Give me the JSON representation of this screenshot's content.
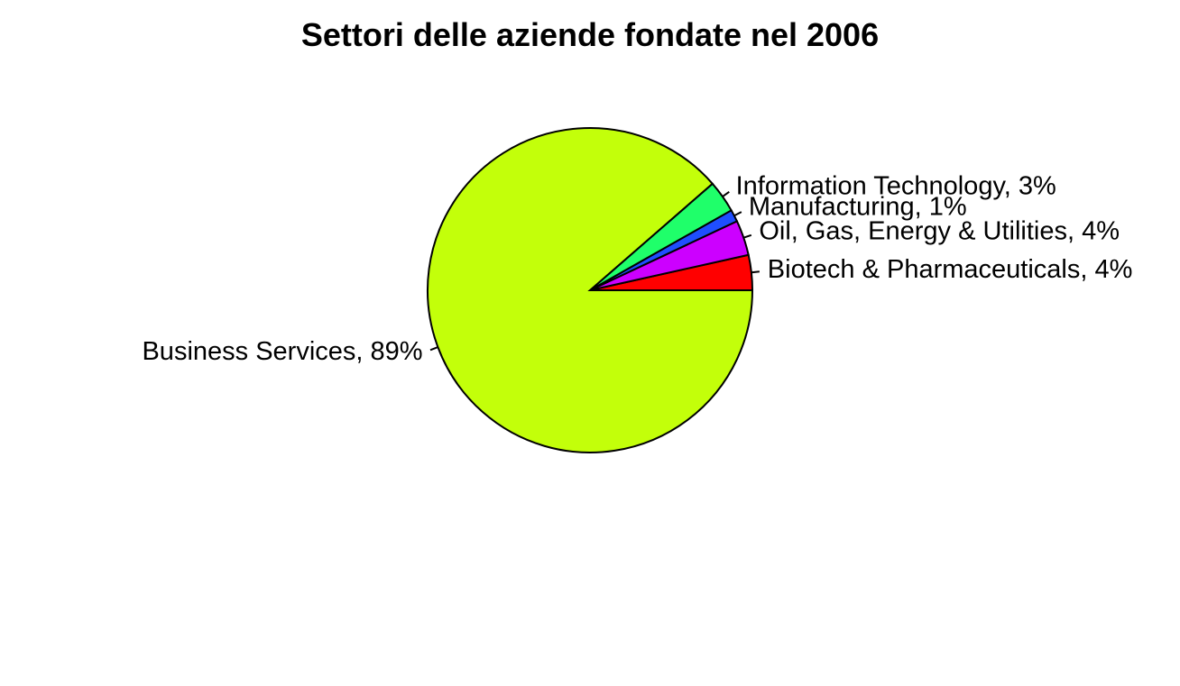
{
  "chart_data": {
    "type": "pie",
    "title": "Settori delle aziende fondate nel 2006",
    "slices": [
      {
        "label": "Biotech & Pharmaceuticals, 4%",
        "value": 3.5,
        "color": "#FF0000"
      },
      {
        "label": "Oil, Gas, Energy & Utilities, 4%",
        "value": 3.5,
        "color": "#CC00FF"
      },
      {
        "label": "Manufacturing, 1%",
        "value": 1.2,
        "color": "#1F4EFF"
      },
      {
        "label": "Information Technology, 3%",
        "value": 3.2,
        "color": "#1FFF6A"
      },
      {
        "label": "Business Services, 89%",
        "value": 88.6,
        "color": "#C3FF0A"
      }
    ],
    "start_angle_deg": 0,
    "direction": "counterclockwise",
    "grid": false,
    "legend": "none"
  }
}
